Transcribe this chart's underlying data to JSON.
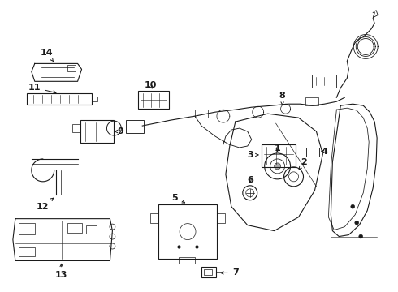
{
  "bg_color": "#ffffff",
  "line_color": "#1a1a1a",
  "text_color": "#1a1a1a",
  "figsize": [
    4.9,
    3.6
  ],
  "dpi": 100
}
